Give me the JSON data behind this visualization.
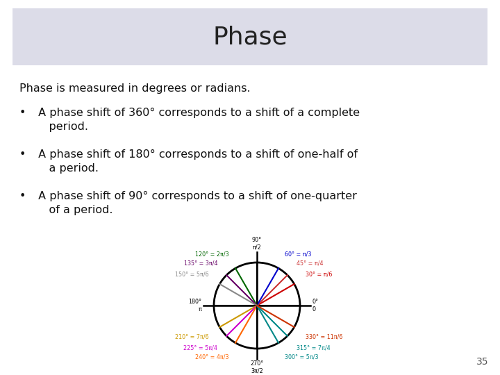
{
  "title": "Phase",
  "title_fontsize": 26,
  "title_bg_color": "#dcdce8",
  "slide_bg_color": "#ffffff",
  "body_text_intro": "Phase is measured in degrees or radians.",
  "bullet1_line1": " A phase shift of 360° corresponds to a shift of a complete",
  "bullet1_line2": "    period.",
  "bullet2_line1": " A phase shift of 180° corresponds to a shift of one-half of",
  "bullet2_line2": "    a period.",
  "bullet3_line1": " A phase shift of 90° corresponds to a shift of one-quarter",
  "bullet3_line2": "    of a period.",
  "slide_number": "35",
  "circle_angles_deg": [
    0,
    30,
    45,
    60,
    90,
    120,
    135,
    150,
    180,
    210,
    225,
    240,
    270,
    300,
    315,
    330
  ],
  "angle_colors": [
    "#000000",
    "#cc0000",
    "#cc3333",
    "#0000cc",
    "#000000",
    "#006600",
    "#660066",
    "#888888",
    "#000000",
    "#cc9900",
    "#cc00cc",
    "#ff6600",
    "#000000",
    "#008888",
    "#008888",
    "#cc3300"
  ],
  "label_data": [
    [
      90,
      "90°",
      "π/2",
      "#000000",
      1.28,
      "top"
    ],
    [
      60,
      "60° = π/3",
      "",
      "#0000cc",
      1.3,
      "upper-right"
    ],
    [
      45,
      "45° = π/4",
      "",
      "#cc3333",
      1.3,
      "upper-right"
    ],
    [
      30,
      "30° = π/6",
      "",
      "#cc0000",
      1.3,
      "right"
    ],
    [
      0,
      "0°",
      "0",
      "#000000",
      1.28,
      "right"
    ],
    [
      330,
      "330° = 11π/6",
      "",
      "#cc3300",
      1.3,
      "right"
    ],
    [
      315,
      "315° = 7π/4",
      "",
      "#008888",
      1.3,
      "lower-right"
    ],
    [
      300,
      "300° = 5π/3",
      "",
      "#008888",
      1.3,
      "lower-right"
    ],
    [
      270,
      "270°",
      "3π/2",
      "#000000",
      1.28,
      "bottom"
    ],
    [
      240,
      "240° = 4π/3",
      "",
      "#ff6600",
      1.3,
      "lower-left"
    ],
    [
      225,
      "225° = 5π/4",
      "",
      "#cc00cc",
      1.3,
      "lower-left"
    ],
    [
      210,
      "210° = 7π/6",
      "",
      "#cc9900",
      1.3,
      "left"
    ],
    [
      180,
      "180°",
      "π",
      "#000000",
      1.28,
      "left"
    ],
    [
      150,
      "150° = 5π/6",
      "",
      "#888888",
      1.3,
      "upper-left"
    ],
    [
      135,
      "135° = 3π/4",
      "",
      "#660066",
      1.3,
      "upper-left"
    ],
    [
      120,
      "120° = 2π/3",
      "",
      "#006600",
      1.3,
      "upper-left"
    ]
  ]
}
